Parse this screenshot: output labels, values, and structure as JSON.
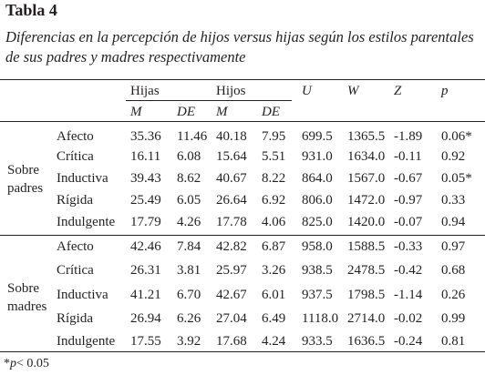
{
  "header": {
    "title": "Tabla 4",
    "caption": "Diferencias en la percepción de hijos versus hijas según los estilos parentales de sus padres y madres respectivamente"
  },
  "table": {
    "group_header": [
      "Hijas",
      "Hijos"
    ],
    "stat_header": [
      "U",
      "W",
      "Z",
      "p"
    ],
    "sub_header": [
      "M",
      "DE",
      "M",
      "DE"
    ],
    "groups": [
      {
        "label": "Sobre padres",
        "rows": [
          {
            "label": "Afecto",
            "cells": [
              "35.36",
              "11.46",
              "40.18",
              "7.95",
              "699.5",
              "1365.5",
              "-1.89",
              "0.06*"
            ]
          },
          {
            "label": "Crítica",
            "cells": [
              "16.11",
              "6.08",
              "15.64",
              "5.51",
              "931.0",
              "1634.0",
              "-0.11",
              "0.92"
            ]
          },
          {
            "label": "Inductiva",
            "cells": [
              "39.43",
              "8.62",
              "40.67",
              "8.22",
              "864.0",
              "1567.0",
              "-0.67",
              "0.05*"
            ]
          },
          {
            "label": "Rígida",
            "cells": [
              "25.49",
              "6.05",
              "26.64",
              "6.92",
              "806.0",
              "1472.0",
              "-0.97",
              "0.33"
            ]
          },
          {
            "label": "Indulgente",
            "cells": [
              "17.79",
              "4.26",
              "17.78",
              "4.06",
              "825.0",
              "1420.0",
              "-0.07",
              "0.94"
            ]
          }
        ]
      },
      {
        "label": "Sobre madres",
        "rows": [
          {
            "label": "Afecto",
            "cells": [
              "42.46",
              "7.84",
              "42.82",
              "6.87",
              "958.0",
              "1588.5",
              "-0.33",
              "0.97"
            ]
          },
          {
            "label": "Crítica",
            "cells": [
              "26.31",
              "3.81",
              "25.97",
              "3.26",
              "938.5",
              "2478.5",
              "-0.42",
              "0.68"
            ]
          },
          {
            "label": "Inductiva",
            "cells": [
              "41.21",
              "6.70",
              "42.67",
              "6.01",
              "937.5",
              "1798.5",
              "-1.14",
              "0.26"
            ]
          },
          {
            "label": "Rígida",
            "cells": [
              "26.94",
              "6.26",
              "27.04",
              "6.49",
              "1118.0",
              "2714.0",
              "-0.02",
              "0.99"
            ]
          },
          {
            "label": "Indulgente",
            "cells": [
              "17.55",
              "3.92",
              "17.68",
              "4.24",
              "933.5",
              "1636.5",
              "-0.24",
              "0.81"
            ]
          }
        ]
      }
    ]
  },
  "footnote": {
    "mark": "*",
    "symbol": "p",
    "text": "< 0.05"
  }
}
